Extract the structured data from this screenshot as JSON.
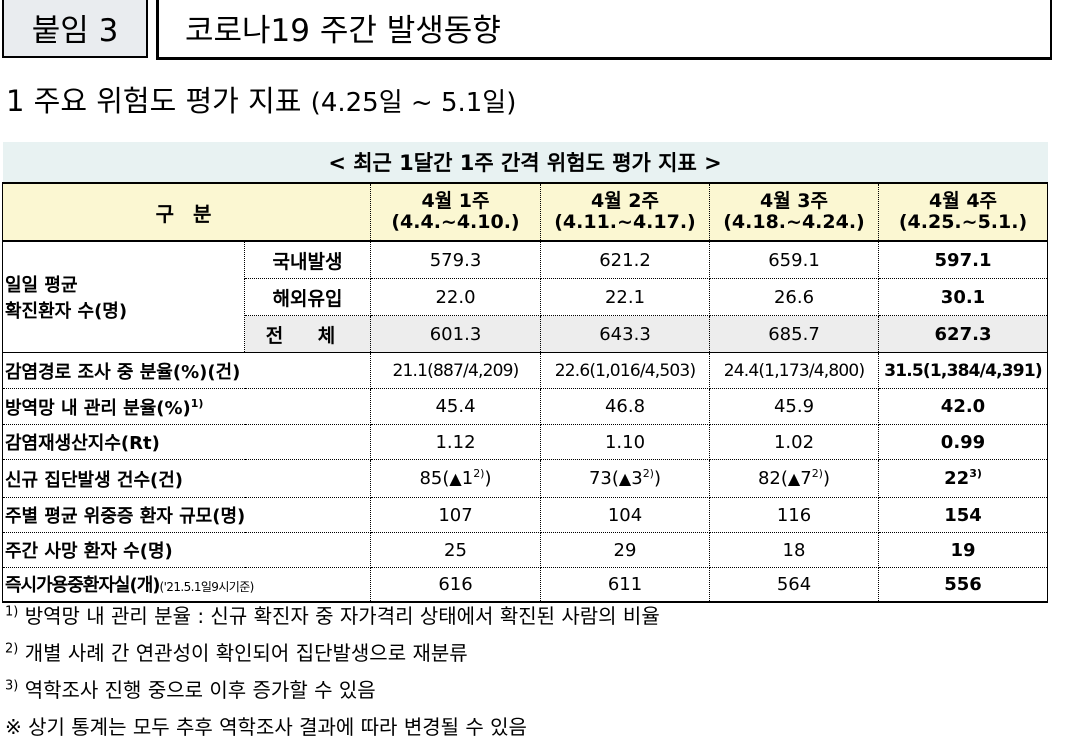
{
  "header": {
    "badge": "붙임 3",
    "title": "코로나19 주간 발생동향"
  },
  "section": {
    "title": "1  주요 위험도 평가 지표",
    "period": "(4.25일 ~ 5.1일)"
  },
  "table": {
    "caption": "< 최근 1달간 1주 간격 위험도 평가 지표 >",
    "col_label": "구 분",
    "weeks": [
      {
        "label": "4월 1주",
        "dates": "(4.4.~4.10.)"
      },
      {
        "label": "4월 2주",
        "dates": "(4.11.~4.17.)"
      },
      {
        "label": "4월 3주",
        "dates": "(4.18.~4.24.)"
      },
      {
        "label": "4월 4주",
        "dates": "(4.25.~5.1.)"
      }
    ],
    "daily": {
      "label_line1": "일일 평균",
      "label_line2": "확진환자 수(명)",
      "rows": [
        {
          "sub": "국내발생",
          "values": [
            "579.3",
            "621.2",
            "659.1",
            "597.1"
          ]
        },
        {
          "sub": "해외유입",
          "values": [
            "22.0",
            "22.1",
            "26.6",
            "30.1"
          ]
        },
        {
          "sub": "전 체",
          "values": [
            "601.3",
            "643.3",
            "685.7",
            "627.3"
          ]
        }
      ]
    },
    "rows": {
      "route": {
        "label": "감염경로 조사 중 분율(%)(건)",
        "values": [
          "21.1(887/4,209)",
          "22.6(1,016/4,503)",
          "24.4(1,173/4,800)",
          "31.5(1,384/4,391)"
        ]
      },
      "managed": {
        "label": "방역망 내 관리 분율(%)",
        "sup": "1)",
        "values": [
          "45.4",
          "46.8",
          "45.9",
          "42.0"
        ]
      },
      "rt": {
        "label": "감염재생산지수(Rt)",
        "values": [
          "1.12",
          "1.10",
          "1.02",
          "0.99"
        ]
      },
      "cluster": {
        "label": "신규 집단발생 건수(건)",
        "values": [
          "85",
          "73",
          "82",
          "22"
        ],
        "paren_open": "(",
        "paren_close": ")",
        "tri": "▲",
        "increases": [
          "1",
          "3",
          "7"
        ],
        "inc_sup": "2)",
        "last_sup": "3)"
      },
      "severe": {
        "label": "주별 평균 위중증 환자 규모(명)",
        "values": [
          "107",
          "104",
          "116",
          "154"
        ]
      },
      "deaths": {
        "label": "주간 사망 환자 수(명)",
        "values": [
          "25",
          "29",
          "18",
          "19"
        ]
      },
      "beds": {
        "label": "즉시가용중환자실(개)",
        "note": "('21.5.1일9시기준)",
        "values": [
          "616",
          "611",
          "564",
          "556"
        ]
      }
    }
  },
  "footnotes": {
    "n1": {
      "mark": "1)",
      "text": " 방역망 내 관리 분율 : 신규 확진자 중 자가격리 상태에서 확진된 사람의 비율"
    },
    "n2": {
      "mark": "2)",
      "text": " 개별 사례 간 연관성이 확인되어 집단발생으로 재분류"
    },
    "n3": {
      "mark": "3)",
      "text": " 역학조사 진행 중으로 이후 증가할 수 있음"
    },
    "n4": {
      "text": "※ 상기 통계는 모두 추후 역학조사 결과에 따라 변경될 수 있음"
    }
  }
}
